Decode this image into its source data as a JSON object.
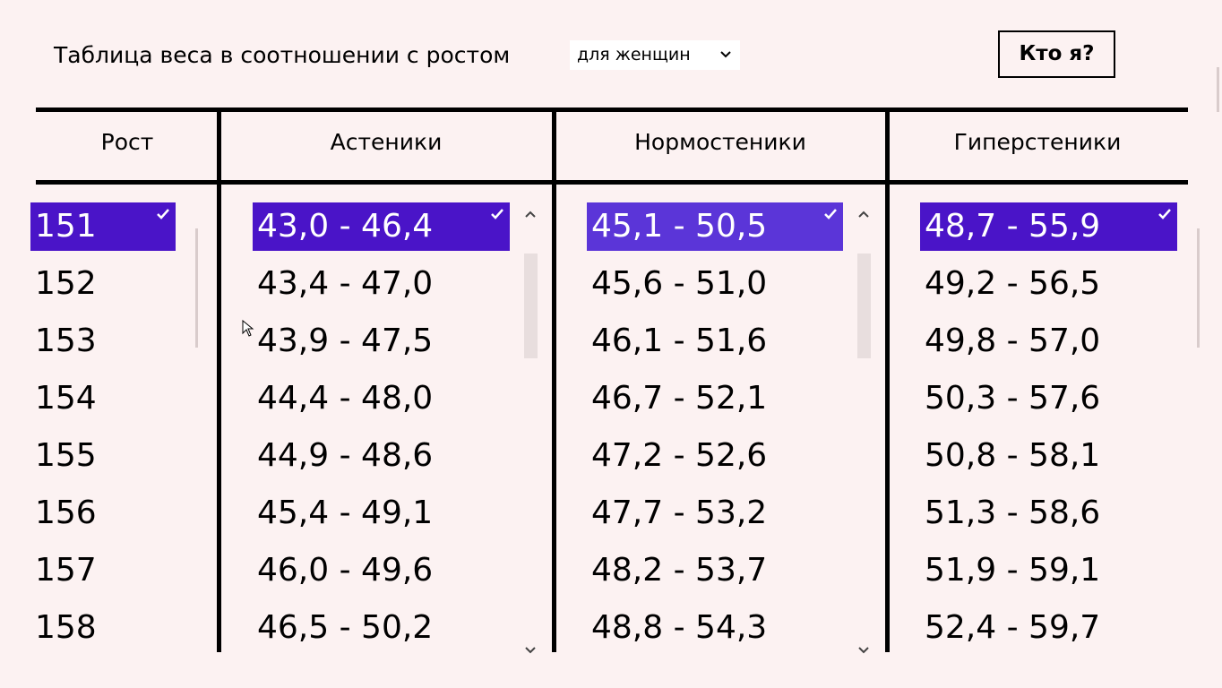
{
  "header": {
    "title": "Таблица веса в соотношении с ростом",
    "dropdown": "для женщин",
    "button": "Кто я?"
  },
  "table": {
    "columns": [
      "Рост",
      "Астеники",
      "Нормостеники",
      "Гиперстеники"
    ],
    "rows": [
      [
        "151",
        "43,0 - 46,4",
        "45,1 - 50,5",
        "48,7 - 55,9"
      ],
      [
        "152",
        "43,4 - 47,0",
        "45,6 - 51,0",
        "49,2 - 56,5"
      ],
      [
        "153",
        "43,9 - 47,5",
        "46,1 - 51,6",
        "49,8 - 57,0"
      ],
      [
        "154",
        "44,4 - 48,0",
        "46,7 - 52,1",
        "50,3 - 57,6"
      ],
      [
        "155",
        "44,9 - 48,6",
        "47,2 - 52,6",
        "50,8 - 58,1"
      ],
      [
        "156",
        "45,4 - 49,1",
        "47,7 - 53,2",
        "51,3 - 58,6"
      ],
      [
        "157",
        "46,0 - 49,6",
        "48,2 - 53,7",
        "51,9 - 59,1"
      ],
      [
        "158",
        "46,5 - 50,2",
        "48,8 - 54,3",
        "52,4 - 59,7"
      ]
    ]
  }
}
